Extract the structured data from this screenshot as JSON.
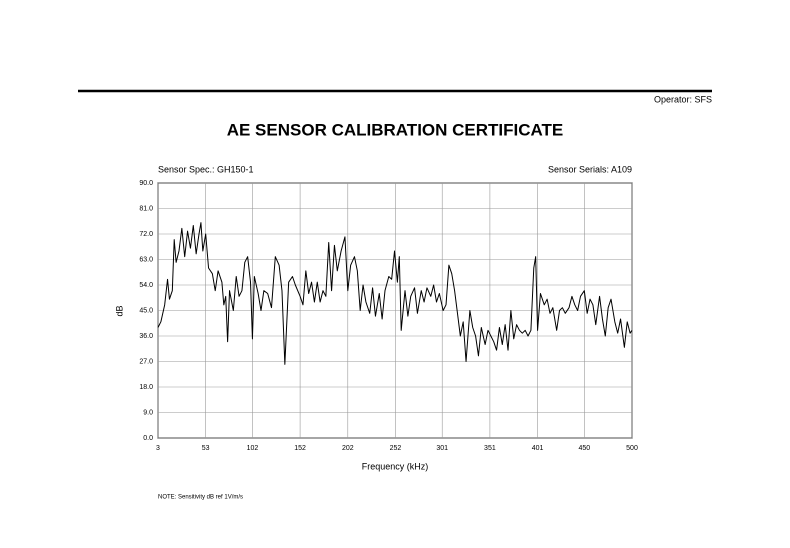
{
  "header": {
    "operator": "Operator: SFS"
  },
  "chart_data": {
    "type": "line",
    "title": "AE SENSOR CALIBRATION CERTIFICATE",
    "left_caption": "Sensor Spec.: GH150-1",
    "right_caption": "Sensor Serials: A109",
    "x_label": "Frequency (kHz)",
    "y_label": "dB",
    "grid": true,
    "color": "#000000",
    "xlim": [
      3,
      500
    ],
    "ylim": [
      0,
      90
    ],
    "xticks": [
      3,
      53,
      102,
      152,
      202,
      252,
      301,
      351,
      401,
      450,
      500
    ],
    "yticks": [
      {
        "value": 0,
        "label": "0.0"
      },
      {
        "value": 9,
        "label": "9.0"
      },
      {
        "value": 18,
        "label": "18.0"
      },
      {
        "value": 27,
        "label": "27.0"
      },
      {
        "value": 36,
        "label": "36.0"
      },
      {
        "value": 45,
        "label": "45.0"
      },
      {
        "value": 54,
        "label": "54.0"
      },
      {
        "value": 63,
        "label": "63.0"
      },
      {
        "value": 72,
        "label": "72.0"
      },
      {
        "value": 81,
        "label": "81.0"
      },
      {
        "value": 90,
        "label": "90.0"
      }
    ],
    "x": [
      3,
      6,
      10,
      13,
      15,
      18,
      20,
      22,
      25,
      28,
      31,
      34,
      37,
      40,
      43,
      46,
      48,
      50,
      53,
      56,
      60,
      63,
      66,
      70,
      72,
      74,
      76,
      78,
      82,
      85,
      88,
      91,
      94,
      97,
      100,
      102,
      104,
      108,
      111,
      114,
      118,
      122,
      126,
      130,
      133,
      136,
      140,
      144,
      147,
      152,
      155,
      158,
      161,
      164,
      167,
      170,
      173,
      176,
      179,
      182,
      185,
      188,
      191,
      195,
      199,
      202,
      205,
      209,
      212,
      215,
      218,
      221,
      225,
      228,
      231,
      235,
      238,
      241,
      245,
      248,
      251,
      254,
      256,
      258,
      262,
      265,
      268,
      272,
      275,
      279,
      282,
      285,
      289,
      292,
      295,
      298,
      302,
      305,
      308,
      311,
      314,
      317,
      320,
      323,
      326,
      330,
      333,
      336,
      339,
      342,
      346,
      349,
      352,
      355,
      358,
      361,
      364,
      367,
      370,
      373,
      376,
      379,
      382,
      385,
      388,
      391,
      394,
      397,
      399,
      401,
      404,
      408,
      411,
      414,
      417,
      421,
      424,
      427,
      430,
      434,
      437,
      440,
      443,
      446,
      450,
      453,
      456,
      459,
      462,
      466,
      469,
      472,
      475,
      478,
      482,
      485,
      488,
      492,
      495,
      498,
      500
    ],
    "values": [
      39,
      41,
      47,
      56,
      49,
      52,
      70,
      62,
      66,
      74,
      64,
      73,
      67,
      75,
      65,
      72,
      76,
      66,
      72,
      60,
      58,
      52,
      59,
      55,
      47,
      50,
      34,
      52,
      45,
      57,
      50,
      52,
      62,
      64,
      55,
      35,
      57,
      51,
      45,
      52,
      51,
      46,
      64,
      61,
      52,
      26,
      55,
      57,
      54,
      50,
      47,
      59,
      51,
      55,
      48,
      55,
      48,
      52,
      50,
      69,
      52,
      68,
      59,
      66,
      71,
      52,
      61,
      64,
      59,
      45,
      54,
      48,
      44,
      53,
      43,
      51,
      42,
      52,
      57,
      56,
      66,
      55,
      64,
      38,
      52,
      43,
      50,
      53,
      44,
      52,
      48,
      53,
      50,
      54,
      48,
      51,
      45,
      47,
      61,
      58,
      52,
      44,
      36,
      41,
      27,
      45,
      39,
      36,
      29,
      39,
      33,
      38,
      36,
      34,
      31,
      39,
      33,
      40,
      31,
      45,
      35,
      40,
      38,
      37,
      38,
      36,
      38,
      60,
      64,
      38,
      51,
      47,
      49,
      44,
      46,
      38,
      45,
      46,
      44,
      46,
      50,
      47,
      45,
      50,
      52,
      44,
      49,
      47,
      40,
      50,
      42,
      36,
      46,
      49,
      41,
      37,
      42,
      32,
      41,
      37,
      38
    ]
  },
  "note": "NOTE:  Sensitivity dB ref 1V/m/s"
}
